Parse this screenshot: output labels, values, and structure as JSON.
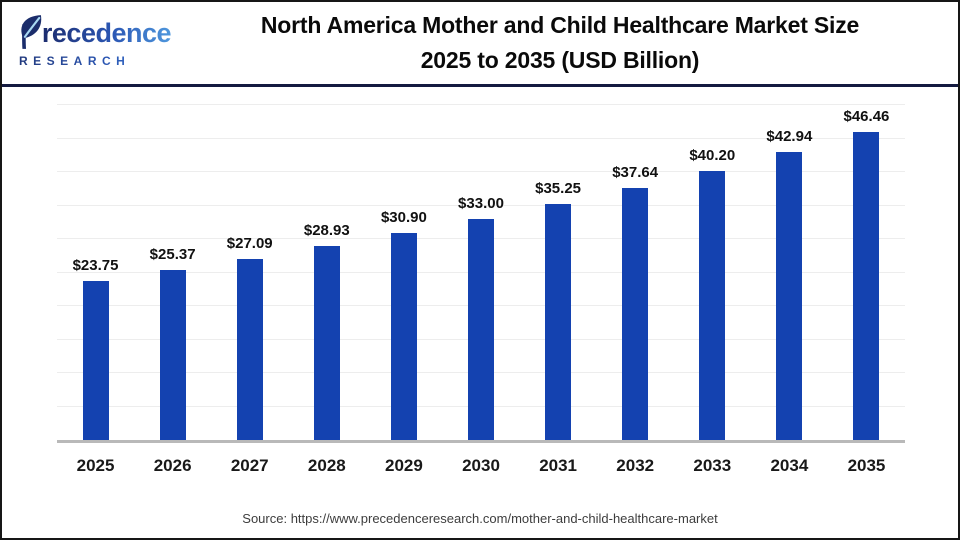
{
  "header": {
    "logo": {
      "name": "Precedence",
      "subtext": "RESEARCH"
    },
    "title_line1": "North America Mother and Child Healthcare Market Size",
    "title_line2": "2025 to 2035 (USD Billion)"
  },
  "chart_data": {
    "type": "bar",
    "title": "North America Mother and Child Healthcare Market Size 2025 to 2035 (USD Billion)",
    "categories": [
      "2025",
      "2026",
      "2027",
      "2028",
      "2029",
      "2030",
      "2031",
      "2032",
      "2033",
      "2034",
      "2035"
    ],
    "values": [
      23.75,
      25.37,
      27.09,
      28.93,
      30.9,
      33.0,
      35.25,
      37.64,
      40.2,
      42.94,
      46.46
    ],
    "label_prefix": "$",
    "label_decimals": 2,
    "xlabel": "",
    "ylabel": "",
    "ylim": [
      0,
      50
    ],
    "gridline_step": 5,
    "grid": "horizontal-light",
    "legend": "none",
    "bar_color": "#1442b0"
  },
  "footer": {
    "source": "Source: https://www.precedenceresearch.com/mother-and-child-healthcare-market"
  }
}
